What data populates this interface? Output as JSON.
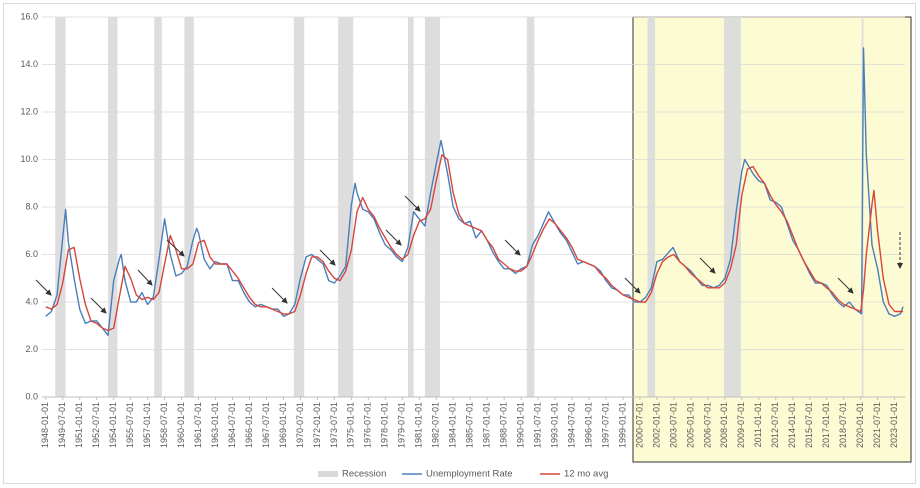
{
  "chart_data": {
    "type": "line",
    "ylim": [
      0,
      16
    ],
    "yticks": [
      {
        "value": 0,
        "label": "0.0"
      },
      {
        "value": 2,
        "label": "2.0"
      },
      {
        "value": 4,
        "label": "4.0"
      },
      {
        "value": 6,
        "label": "6.0"
      },
      {
        "value": 8,
        "label": "8.0"
      },
      {
        "value": 10,
        "label": "10.0"
      },
      {
        "value": 12,
        "label": "12.0"
      },
      {
        "value": 14,
        "label": "14.0"
      },
      {
        "value": 16,
        "label": "16.0"
      }
    ],
    "xlim": [
      "1947-09-01",
      "2023-12-01"
    ],
    "xticks": [
      "1948-01-01",
      "1949-07-01",
      "1951-01-01",
      "1952-07-01",
      "1954-01-01",
      "1955-07-01",
      "1957-01-01",
      "1958-07-01",
      "1960-01-01",
      "1961-07-01",
      "1963-01-01",
      "1964-07-01",
      "1966-01-01",
      "1967-07-01",
      "1969-01-01",
      "1970-07-01",
      "1972-01-01",
      "1973-07-01",
      "1975-01-01",
      "1976-07-01",
      "1978-01-01",
      "1979-07-01",
      "1981-01-01",
      "1982-07-01",
      "1984-01-01",
      "1985-07-01",
      "1987-01-01",
      "1988-07-01",
      "1990-01-01",
      "1991-07-01",
      "1993-01-01",
      "1994-07-01",
      "1996-01-01",
      "1997-07-01",
      "1999-01-01",
      "2000-07-01",
      "2002-01-01",
      "2003-07-01",
      "2005-01-01",
      "2006-07-01",
      "2008-01-01",
      "2009-07-01",
      "2011-01-01",
      "2012-07-01",
      "2014-01-01",
      "2015-07-01",
      "2017-01-01",
      "2018-07-01",
      "2020-01-01",
      "2021-07-01",
      "2023-01-01"
    ],
    "grid": true,
    "recessions": {
      "name": "Recession",
      "color": "#d9d9d9",
      "periods": [
        [
          "1948-11-01",
          "1949-10-01"
        ],
        [
          "1953-07-01",
          "1954-05-01"
        ],
        [
          "1957-08-01",
          "1958-04-01"
        ],
        [
          "1960-04-01",
          "1961-02-01"
        ],
        [
          "1969-12-01",
          "1970-11-01"
        ],
        [
          "1973-11-01",
          "1975-03-01"
        ],
        [
          "1980-01-01",
          "1980-07-01"
        ],
        [
          "1981-07-01",
          "1982-11-01"
        ],
        [
          "1990-07-01",
          "1991-03-01"
        ],
        [
          "2001-03-01",
          "2001-11-01"
        ],
        [
          "2007-12-01",
          "2009-06-01"
        ],
        [
          "2020-02-01",
          "2020-04-01"
        ]
      ]
    },
    "series": [
      {
        "name": "Unemployment Rate",
        "color": "#4a7ebb",
        "x": [
          "1948-01-01",
          "1948-07-01",
          "1949-01-01",
          "1949-07-01",
          "1949-10-01",
          "1950-01-01",
          "1950-07-01",
          "1951-01-01",
          "1951-07-01",
          "1952-01-01",
          "1952-07-01",
          "1953-01-01",
          "1953-07-01",
          "1954-01-01",
          "1954-07-01",
          "1954-09-01",
          "1955-01-01",
          "1955-07-01",
          "1956-01-01",
          "1956-07-01",
          "1957-01-01",
          "1957-07-01",
          "1958-01-01",
          "1958-07-01",
          "1959-01-01",
          "1959-07-01",
          "1960-01-01",
          "1960-07-01",
          "1961-01-01",
          "1961-05-01",
          "1961-07-01",
          "1962-01-01",
          "1962-07-01",
          "1963-01-01",
          "1963-07-01",
          "1964-01-01",
          "1964-07-01",
          "1965-01-01",
          "1965-07-01",
          "1966-01-01",
          "1966-07-01",
          "1967-01-01",
          "1967-07-01",
          "1968-01-01",
          "1968-07-01",
          "1969-01-01",
          "1969-07-01",
          "1970-01-01",
          "1970-07-01",
          "1971-01-01",
          "1971-07-01",
          "1972-01-01",
          "1972-07-01",
          "1973-01-01",
          "1973-07-01",
          "1974-01-01",
          "1974-07-01",
          "1975-01-01",
          "1975-05-01",
          "1975-07-01",
          "1976-01-01",
          "1976-07-01",
          "1977-01-01",
          "1977-07-01",
          "1978-01-01",
          "1978-07-01",
          "1979-01-01",
          "1979-07-01",
          "1980-01-01",
          "1980-07-01",
          "1981-01-01",
          "1981-07-01",
          "1982-01-01",
          "1982-07-01",
          "1982-12-01",
          "1983-07-01",
          "1984-01-01",
          "1984-07-01",
          "1985-01-01",
          "1985-07-01",
          "1986-01-01",
          "1986-07-01",
          "1987-01-01",
          "1987-07-01",
          "1988-01-01",
          "1988-07-01",
          "1989-01-01",
          "1989-07-01",
          "1990-01-01",
          "1990-07-01",
          "1991-01-01",
          "1991-07-01",
          "1992-06-01",
          "1993-01-01",
          "1993-07-01",
          "1994-01-01",
          "1994-07-01",
          "1995-01-01",
          "1995-07-01",
          "1996-01-01",
          "1996-07-01",
          "1997-01-01",
          "1997-07-01",
          "1998-01-01",
          "1998-07-01",
          "1999-01-01",
          "1999-07-01",
          "2000-01-01",
          "2000-07-01",
          "2001-01-01",
          "2001-07-01",
          "2002-01-01",
          "2002-07-01",
          "2003-06-01",
          "2004-01-01",
          "2004-07-01",
          "2005-01-01",
          "2005-07-01",
          "2006-01-01",
          "2006-07-01",
          "2007-01-01",
          "2007-07-01",
          "2008-01-01",
          "2008-07-01",
          "2009-01-01",
          "2009-07-01",
          "2009-10-01",
          "2010-07-01",
          "2011-01-01",
          "2011-07-01",
          "2012-01-01",
          "2012-07-01",
          "2013-01-01",
          "2013-07-01",
          "2014-01-01",
          "2014-07-01",
          "2015-01-01",
          "2015-07-01",
          "2016-01-01",
          "2016-07-01",
          "2017-01-01",
          "2017-07-01",
          "2018-01-01",
          "2018-07-01",
          "2019-01-01",
          "2019-07-01",
          "2020-02-01",
          "2020-04-01",
          "2020-07-01",
          "2021-01-01",
          "2021-07-01",
          "2022-01-01",
          "2022-07-01",
          "2023-01-01",
          "2023-07-01",
          "2023-10-01"
        ],
        "values": [
          3.4,
          3.6,
          4.3,
          6.7,
          7.9,
          6.5,
          5.0,
          3.7,
          3.1,
          3.2,
          3.2,
          2.9,
          2.6,
          4.9,
          5.8,
          6.0,
          4.9,
          4.0,
          4.0,
          4.4,
          3.9,
          4.2,
          5.8,
          7.5,
          6.0,
          5.1,
          5.2,
          5.5,
          6.6,
          7.1,
          6.9,
          5.8,
          5.4,
          5.7,
          5.6,
          5.6,
          4.9,
          4.9,
          4.4,
          4.0,
          3.8,
          3.9,
          3.8,
          3.7,
          3.7,
          3.4,
          3.5,
          3.9,
          5.0,
          5.9,
          6.0,
          5.8,
          5.6,
          4.9,
          4.8,
          5.1,
          5.5,
          8.1,
          9.0,
          8.6,
          7.9,
          7.8,
          7.5,
          6.9,
          6.4,
          6.2,
          5.9,
          5.7,
          6.3,
          7.8,
          7.5,
          7.2,
          8.6,
          9.8,
          10.8,
          9.4,
          8.0,
          7.5,
          7.3,
          7.4,
          6.7,
          7.0,
          6.6,
          6.1,
          5.7,
          5.4,
          5.4,
          5.2,
          5.4,
          5.5,
          6.4,
          6.8,
          7.8,
          7.3,
          6.9,
          6.6,
          6.1,
          5.6,
          5.7,
          5.6,
          5.5,
          5.3,
          4.9,
          4.6,
          4.5,
          4.3,
          4.3,
          4.0,
          4.0,
          4.2,
          4.6,
          5.7,
          5.8,
          6.3,
          5.7,
          5.5,
          5.3,
          5.0,
          4.7,
          4.7,
          4.6,
          4.7,
          5.0,
          5.8,
          7.8,
          9.5,
          10.0,
          9.4,
          9.1,
          9.0,
          8.3,
          8.2,
          8.0,
          7.3,
          6.6,
          6.2,
          5.7,
          5.2,
          4.8,
          4.8,
          4.7,
          4.3,
          4.0,
          3.8,
          4.0,
          3.7,
          3.5,
          14.7,
          10.2,
          6.4,
          5.4,
          4.0,
          3.5,
          3.4,
          3.5,
          3.8
        ]
      },
      {
        "name": "12 mo avg",
        "color": "#d7463b",
        "x": [
          "1948-01-01",
          "1948-07-01",
          "1949-01-01",
          "1949-07-01",
          "1950-01-01",
          "1950-07-01",
          "1951-01-01",
          "1951-07-01",
          "1952-01-01",
          "1952-07-01",
          "1953-01-01",
          "1953-07-01",
          "1954-01-01",
          "1954-07-01",
          "1955-01-01",
          "1955-07-01",
          "1956-01-01",
          "1956-07-01",
          "1957-01-01",
          "1957-07-01",
          "1958-01-01",
          "1958-07-01",
          "1959-01-01",
          "1959-07-01",
          "1960-01-01",
          "1960-07-01",
          "1961-01-01",
          "1961-07-01",
          "1962-01-01",
          "1962-07-01",
          "1963-01-01",
          "1963-07-01",
          "1964-01-01",
          "1964-07-01",
          "1965-01-01",
          "1965-07-01",
          "1966-01-01",
          "1966-07-01",
          "1967-01-01",
          "1967-07-01",
          "1968-01-01",
          "1968-07-01",
          "1969-01-01",
          "1969-07-01",
          "1970-01-01",
          "1970-07-01",
          "1971-01-01",
          "1971-07-01",
          "1972-01-01",
          "1972-07-01",
          "1973-01-01",
          "1973-07-01",
          "1974-01-01",
          "1974-07-01",
          "1975-01-01",
          "1975-07-01",
          "1976-01-01",
          "1976-07-01",
          "1977-01-01",
          "1977-07-01",
          "1978-01-01",
          "1978-07-01",
          "1979-01-01",
          "1979-07-01",
          "1980-01-01",
          "1980-07-01",
          "1981-01-01",
          "1981-07-01",
          "1982-01-01",
          "1982-07-01",
          "1983-01-01",
          "1983-07-01",
          "1984-01-01",
          "1984-07-01",
          "1985-01-01",
          "1985-07-01",
          "1986-01-01",
          "1986-07-01",
          "1987-01-01",
          "1987-07-01",
          "1988-01-01",
          "1988-07-01",
          "1989-01-01",
          "1989-07-01",
          "1990-01-01",
          "1990-07-01",
          "1991-01-01",
          "1991-07-01",
          "1992-01-01",
          "1992-07-01",
          "1993-01-01",
          "1993-07-01",
          "1994-01-01",
          "1994-07-01",
          "1995-01-01",
          "1995-07-01",
          "1996-01-01",
          "1996-07-01",
          "1997-01-01",
          "1997-07-01",
          "1998-01-01",
          "1998-07-01",
          "1999-01-01",
          "1999-07-01",
          "2000-01-01",
          "2000-07-01",
          "2001-01-01",
          "2001-07-01",
          "2002-01-01",
          "2002-07-01",
          "2003-01-01",
          "2003-07-01",
          "2004-01-01",
          "2004-07-01",
          "2005-01-01",
          "2005-07-01",
          "2006-01-01",
          "2006-07-01",
          "2007-01-01",
          "2007-07-01",
          "2008-01-01",
          "2008-07-01",
          "2009-01-01",
          "2009-07-01",
          "2010-01-01",
          "2010-07-01",
          "2011-01-01",
          "2011-07-01",
          "2012-01-01",
          "2012-07-01",
          "2013-01-01",
          "2013-07-01",
          "2014-01-01",
          "2014-07-01",
          "2015-01-01",
          "2015-07-01",
          "2016-01-01",
          "2016-07-01",
          "2017-01-01",
          "2017-07-01",
          "2018-01-01",
          "2018-07-01",
          "2019-01-01",
          "2019-07-01",
          "2020-01-01",
          "2020-04-01",
          "2020-07-01",
          "2021-01-01",
          "2021-03-01",
          "2021-07-01",
          "2022-01-01",
          "2022-07-01",
          "2023-01-01",
          "2023-07-01",
          "2023-10-01"
        ],
        "values": [
          3.8,
          3.7,
          3.9,
          4.8,
          6.2,
          6.3,
          5.0,
          3.9,
          3.2,
          3.1,
          2.9,
          2.8,
          2.9,
          4.2,
          5.5,
          5.0,
          4.3,
          4.1,
          4.2,
          4.1,
          4.4,
          5.6,
          6.8,
          6.2,
          5.4,
          5.4,
          5.6,
          6.5,
          6.6,
          5.9,
          5.6,
          5.6,
          5.6,
          5.3,
          5.0,
          4.6,
          4.2,
          3.9,
          3.8,
          3.8,
          3.7,
          3.6,
          3.5,
          3.5,
          3.6,
          4.3,
          5.2,
          5.9,
          5.9,
          5.7,
          5.3,
          5.0,
          4.9,
          5.3,
          6.2,
          7.8,
          8.4,
          7.9,
          7.6,
          7.1,
          6.7,
          6.3,
          6.0,
          5.8,
          6.0,
          6.8,
          7.4,
          7.5,
          7.9,
          9.1,
          10.2,
          10.0,
          8.6,
          7.7,
          7.3,
          7.2,
          7.1,
          7.0,
          6.6,
          6.3,
          5.8,
          5.6,
          5.4,
          5.3,
          5.3,
          5.5,
          6.0,
          6.6,
          7.1,
          7.5,
          7.3,
          7.0,
          6.7,
          6.3,
          5.8,
          5.7,
          5.6,
          5.5,
          5.2,
          5.0,
          4.7,
          4.5,
          4.3,
          4.2,
          4.1,
          4.0,
          4.0,
          4.4,
          5.2,
          5.7,
          5.9,
          6.0,
          5.7,
          5.5,
          5.2,
          5.0,
          4.8,
          4.6,
          4.6,
          4.6,
          4.8,
          5.4,
          6.4,
          8.5,
          9.6,
          9.7,
          9.3,
          9.0,
          8.5,
          8.1,
          7.8,
          7.4,
          6.8,
          6.2,
          5.7,
          5.3,
          4.9,
          4.8,
          4.6,
          4.4,
          4.1,
          3.9,
          3.8,
          3.7,
          3.6,
          4.5,
          6.0,
          8.1,
          8.7,
          7.0,
          5.0,
          3.9,
          3.6,
          3.6,
          3.6
        ]
      }
    ]
  }
}
